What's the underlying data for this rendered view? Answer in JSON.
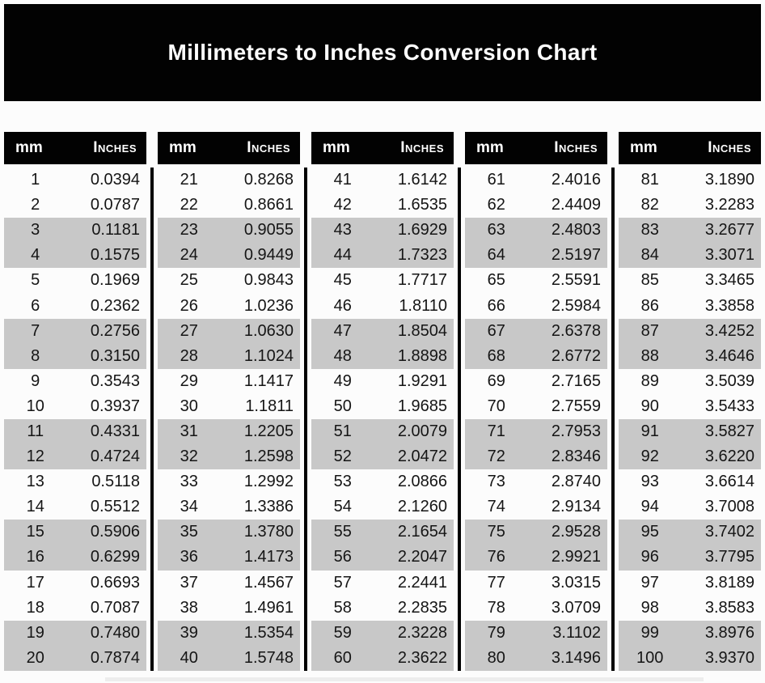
{
  "title": "Millimeters to Inches Conversion Chart",
  "table_header": {
    "mm": "mm",
    "inches": "Inches"
  },
  "colors": {
    "banner_bg": "#020202",
    "banner_text": "#ffffff",
    "header_bg": "#020202",
    "header_text": "#ffffff",
    "stripe_gray": "#c8c8c8",
    "row_text": "#151515",
    "page_bg": "#fcfcfc",
    "divider": "#000000"
  },
  "chart_data": {
    "type": "table",
    "title": "Millimeters to Inches Conversion Chart",
    "columns": [
      "mm",
      "Inches"
    ],
    "layout": "5 side-by-side column groups of 20 rows, paired-row gray striping, black vertical dividers between groups",
    "groups": [
      {
        "rows": [
          [
            1,
            "0.0394"
          ],
          [
            2,
            "0.0787"
          ],
          [
            3,
            "0.1181"
          ],
          [
            4,
            "0.1575"
          ],
          [
            5,
            "0.1969"
          ],
          [
            6,
            "0.2362"
          ],
          [
            7,
            "0.2756"
          ],
          [
            8,
            "0.3150"
          ],
          [
            9,
            "0.3543"
          ],
          [
            10,
            "0.3937"
          ],
          [
            11,
            "0.4331"
          ],
          [
            12,
            "0.4724"
          ],
          [
            13,
            "0.5118"
          ],
          [
            14,
            "0.5512"
          ],
          [
            15,
            "0.5906"
          ],
          [
            16,
            "0.6299"
          ],
          [
            17,
            "0.6693"
          ],
          [
            18,
            "0.7087"
          ],
          [
            19,
            "0.7480"
          ],
          [
            20,
            "0.7874"
          ]
        ]
      },
      {
        "rows": [
          [
            21,
            "0.8268"
          ],
          [
            22,
            "0.8661"
          ],
          [
            23,
            "0.9055"
          ],
          [
            24,
            "0.9449"
          ],
          [
            25,
            "0.9843"
          ],
          [
            26,
            "1.0236"
          ],
          [
            27,
            "1.0630"
          ],
          [
            28,
            "1.1024"
          ],
          [
            29,
            "1.1417"
          ],
          [
            30,
            "1.1811"
          ],
          [
            31,
            "1.2205"
          ],
          [
            32,
            "1.2598"
          ],
          [
            33,
            "1.2992"
          ],
          [
            34,
            "1.3386"
          ],
          [
            35,
            "1.3780"
          ],
          [
            36,
            "1.4173"
          ],
          [
            37,
            "1.4567"
          ],
          [
            38,
            "1.4961"
          ],
          [
            39,
            "1.5354"
          ],
          [
            40,
            "1.5748"
          ]
        ]
      },
      {
        "rows": [
          [
            41,
            "1.6142"
          ],
          [
            42,
            "1.6535"
          ],
          [
            43,
            "1.6929"
          ],
          [
            44,
            "1.7323"
          ],
          [
            45,
            "1.7717"
          ],
          [
            46,
            "1.8110"
          ],
          [
            47,
            "1.8504"
          ],
          [
            48,
            "1.8898"
          ],
          [
            49,
            "1.9291"
          ],
          [
            50,
            "1.9685"
          ],
          [
            51,
            "2.0079"
          ],
          [
            52,
            "2.0472"
          ],
          [
            53,
            "2.0866"
          ],
          [
            54,
            "2.1260"
          ],
          [
            55,
            "2.1654"
          ],
          [
            56,
            "2.2047"
          ],
          [
            57,
            "2.2441"
          ],
          [
            58,
            "2.2835"
          ],
          [
            59,
            "2.3228"
          ],
          [
            60,
            "2.3622"
          ]
        ]
      },
      {
        "rows": [
          [
            61,
            "2.4016"
          ],
          [
            62,
            "2.4409"
          ],
          [
            63,
            "2.4803"
          ],
          [
            64,
            "2.5197"
          ],
          [
            65,
            "2.5591"
          ],
          [
            66,
            "2.5984"
          ],
          [
            67,
            "2.6378"
          ],
          [
            68,
            "2.6772"
          ],
          [
            69,
            "2.7165"
          ],
          [
            70,
            "2.7559"
          ],
          [
            71,
            "2.7953"
          ],
          [
            72,
            "2.8346"
          ],
          [
            73,
            "2.8740"
          ],
          [
            74,
            "2.9134"
          ],
          [
            75,
            "2.9528"
          ],
          [
            76,
            "2.9921"
          ],
          [
            77,
            "3.0315"
          ],
          [
            78,
            "3.0709"
          ],
          [
            79,
            "3.1102"
          ],
          [
            80,
            "3.1496"
          ]
        ]
      },
      {
        "rows": [
          [
            81,
            "3.1890"
          ],
          [
            82,
            "3.2283"
          ],
          [
            83,
            "3.2677"
          ],
          [
            84,
            "3.3071"
          ],
          [
            85,
            "3.3465"
          ],
          [
            86,
            "3.3858"
          ],
          [
            87,
            "3.4252"
          ],
          [
            88,
            "3.4646"
          ],
          [
            89,
            "3.5039"
          ],
          [
            90,
            "3.5433"
          ],
          [
            91,
            "3.5827"
          ],
          [
            92,
            "3.6220"
          ],
          [
            93,
            "3.6614"
          ],
          [
            94,
            "3.7008"
          ],
          [
            95,
            "3.7402"
          ],
          [
            96,
            "3.7795"
          ],
          [
            97,
            "3.8189"
          ],
          [
            98,
            "3.8583"
          ],
          [
            99,
            "3.8976"
          ],
          [
            100,
            "3.9370"
          ]
        ]
      }
    ]
  }
}
